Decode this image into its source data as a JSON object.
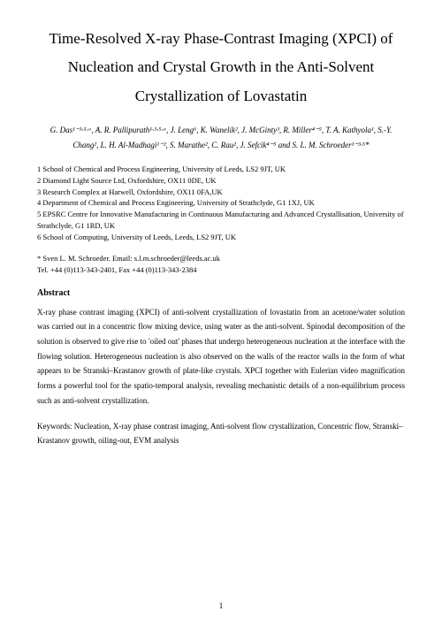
{
  "title": "Time-Resolved X-ray Phase-Contrast Imaging (XPCI) of Nucleation and Crystal Growth in the Anti-Solvent Crystallization of Lovastatin",
  "authors": "G. Das¹⁻³·⁵·ᵃ, A. R. Pallipurath¹·³·⁵·ᵃ, J. Leng⁶, K. Wanelik², J. McGinty³, R. Miller⁴⁻⁵, T. A. Kathyola¹, S.-Y. Chang², L. H. Al-Madhagi¹⁻², S. Marathe², C. Rau², J. Sefcik⁴⁻⁵ and S. L. M. Schroeder¹⁻³·⁵*",
  "affiliations": [
    "1 School of Chemical and Process Engineering, University of Leeds, LS2 9JT, UK",
    "2 Diamond Light Source Ltd, Oxfordshire, OX11 0DE, UK",
    "3 Research Complex at Harwell, Oxfordshire, OX11 0FA,UK",
    "4 Department of Chemical and Process Engineering, University of Strathclyde, G1 1XJ, UK",
    "5 EPSRC Centre for Innovative Manufacturing in Continuous Manufacturing and Advanced Crystallisation, University of Strathclyde, G1 1RD, UK",
    "6 School of Computing, University of Leeds, Leeds, LS2 9JT, UK"
  ],
  "corresponding": {
    "name": "* Sven L. M. Schroeder. Email: s.l.m.schroeder@leeds.ac.uk",
    "contact": "Tel. +44 (0)113-343-2401, Fax +44 (0)113-343-2384"
  },
  "abstract": {
    "heading": "Abstract",
    "body": "X-ray phase contrast imaging (XPCI) of anti-solvent crystallization of lovastatin from an acetone/water solution was carried out in a concentric flow mixing device, using water as the anti-solvent. Spinodal decomposition of the solution is observed to give rise to 'oiled out' phases that undergo heterogeneous nucleation at the interface with the flowing solution. Heterogeneous nucleation is also observed on the walls of the reactor walls in the form of what appears to be Stranski–Krastanov growth of plate-like crystals. XPCI together with Eulerian video magnification forms a powerful tool for the spatio-temporal analysis, revealing mechanistic details of a non-equilibrium process such as anti-solvent crystallization."
  },
  "keywords": "Keywords: Nucleation, X-ray phase contrast imaging, Anti-solvent flow crystallization, Concentric flow, Stranski–Krastanov growth, oiling-out, EVM analysis",
  "page_number": "1"
}
